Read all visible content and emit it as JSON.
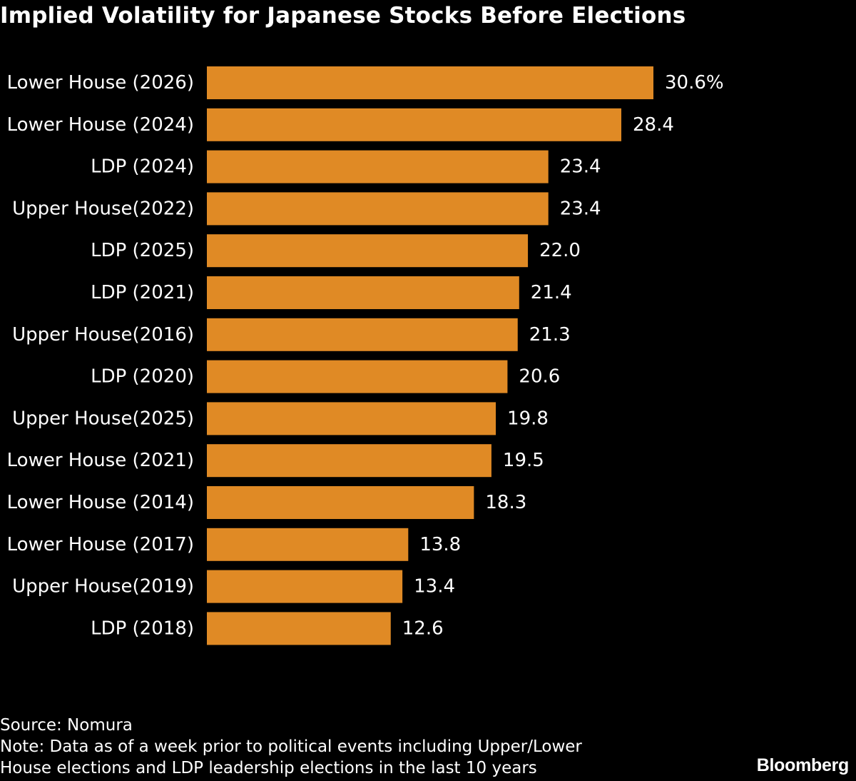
{
  "chart_data": {
    "type": "bar",
    "orientation": "horizontal",
    "title": "Implied Volatility for Japanese Stocks Before Elections",
    "categories": [
      "Lower House (2026)",
      "Lower House (2024)",
      "LDP (2024)",
      "Upper House(2022)",
      "LDP (2025)",
      "LDP (2021)",
      "Upper House(2016)",
      "LDP (2020)",
      "Upper House(2025)",
      "Lower House (2021)",
      "Lower House (2014)",
      "Lower House (2017)",
      "Upper House(2019)",
      "LDP (2018)"
    ],
    "values": [
      30.6,
      28.4,
      23.4,
      23.4,
      22.0,
      21.4,
      21.3,
      20.6,
      19.8,
      19.5,
      18.3,
      13.8,
      13.4,
      12.6
    ],
    "value_labels": [
      "30.6%",
      "28.4",
      "23.4",
      "23.4",
      "22.0",
      "21.4",
      "21.3",
      "20.6",
      "19.8",
      "19.5",
      "18.3",
      "13.8",
      "13.4",
      "12.6"
    ],
    "xlim": [
      0,
      30.6
    ],
    "xlabel": "",
    "ylabel": "",
    "grid": false,
    "bar_color": "#E08A25",
    "background_color": "#000000",
    "text_color": "#FFFFFF"
  },
  "footer": {
    "source": "Source: Nomura",
    "note_line1": "Note: Data as of a week prior to political events including Upper/Lower",
    "note_line2": "House elections and LDP leadership elections in the last 10 years"
  },
  "brand": "Bloomberg"
}
